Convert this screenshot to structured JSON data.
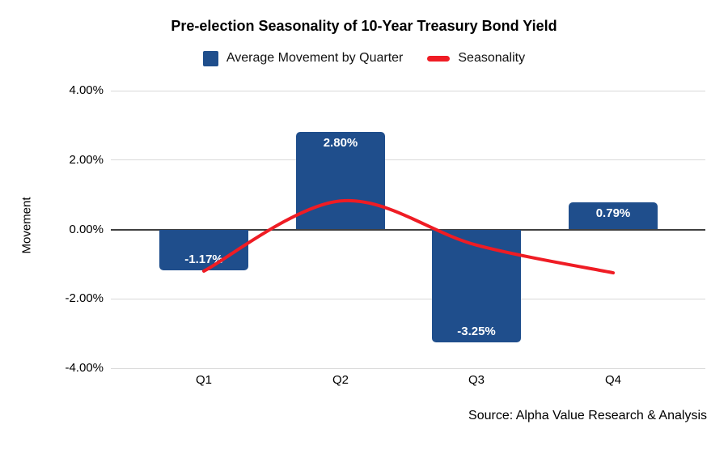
{
  "header": {
    "title": "Pre-election Seasonality of 10-Year Treasury Bond Yield"
  },
  "legend": [
    {
      "label": "Average Movement by Quarter",
      "marker": "square",
      "color": "#1f4e8c"
    },
    {
      "label": "Seasonality",
      "marker": "line",
      "color": "#ef1c24"
    }
  ],
  "axes": {
    "y_label": "Movement",
    "y_ticks": [
      {
        "label": "4.00%",
        "value": 4
      },
      {
        "label": "2.00%",
        "value": 2
      },
      {
        "label": "0.00%",
        "value": 0
      },
      {
        "label": "-2.00%",
        "value": -2
      },
      {
        "label": "-4.00%",
        "value": -4
      }
    ],
    "x_ticks": [
      "Q1",
      "Q2",
      "Q3",
      "Q4"
    ]
  },
  "source": "Source: Alpha Value Research & Analysis",
  "colors": {
    "bar": "#1f4e8c",
    "line": "#ef1c24",
    "grid": "#d9d9d9",
    "zero_line": "#3f3f3f",
    "bar_label_text": "#ffffff"
  },
  "chart_data": {
    "type": "bar",
    "title": "Pre-election Seasonality of 10-Year Treasury Bond Yield",
    "xlabel": "",
    "ylabel": "Movement",
    "ylim": [
      -4,
      4
    ],
    "y_tick_step": 2,
    "grid": true,
    "legend_position": "top",
    "categories": [
      "Q1",
      "Q2",
      "Q3",
      "Q4"
    ],
    "series": [
      {
        "name": "Average Movement by Quarter",
        "type": "bar",
        "color": "#1f4e8c",
        "values": [
          -1.17,
          2.8,
          -3.25,
          0.79
        ],
        "data_labels": [
          "-1.17%",
          "2.80%",
          "-3.25%",
          "0.79%"
        ]
      },
      {
        "name": "Seasonality",
        "type": "line",
        "color": "#ef1c24",
        "values": [
          -1.2,
          0.82,
          -0.45,
          -1.25
        ]
      }
    ]
  }
}
